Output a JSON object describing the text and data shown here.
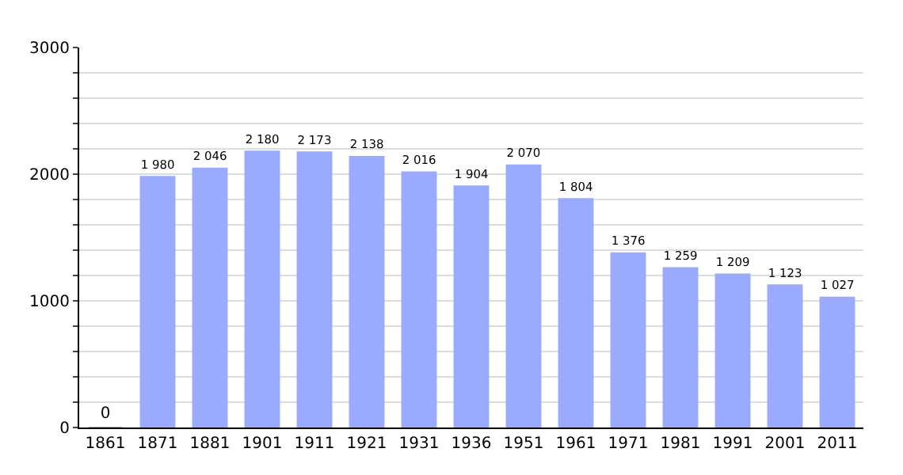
{
  "chart_data": {
    "type": "bar",
    "categories": [
      "1861",
      "1871",
      "1881",
      "1901",
      "1911",
      "1921",
      "1931",
      "1936",
      "1951",
      "1961",
      "1971",
      "1981",
      "1991",
      "2001",
      "2011"
    ],
    "values": [
      0,
      1980,
      2046,
      2180,
      2173,
      2138,
      2016,
      1904,
      2070,
      1804,
      1376,
      1259,
      1209,
      1123,
      1027
    ],
    "value_labels": [
      "0",
      "1 980",
      "2 046",
      "2 180",
      "2 173",
      "2 138",
      "2 016",
      "1 904",
      "2 070",
      "1 804",
      "1 376",
      "1 259",
      "1 209",
      "1 123",
      "1 027"
    ],
    "color": "#99aaff",
    "ylim": [
      0,
      3000
    ],
    "yticks": [
      0,
      {
        "value": 200,
        "label": null
      },
      {
        "value": 400,
        "label": null
      },
      {
        "value": 600,
        "label": null
      },
      {
        "value": 800,
        "label": null
      },
      1000,
      {
        "value": 1200,
        "label": null
      },
      {
        "value": 1400,
        "label": null
      },
      {
        "value": 1600,
        "label": null
      },
      {
        "value": 1800,
        "label": null
      },
      2000,
      {
        "value": 2200,
        "label": null
      },
      {
        "value": 2400,
        "label": null
      },
      {
        "value": 2600,
        "label": null
      },
      {
        "value": 2800,
        "label": null
      },
      3000
    ],
    "grid": "y"
  }
}
